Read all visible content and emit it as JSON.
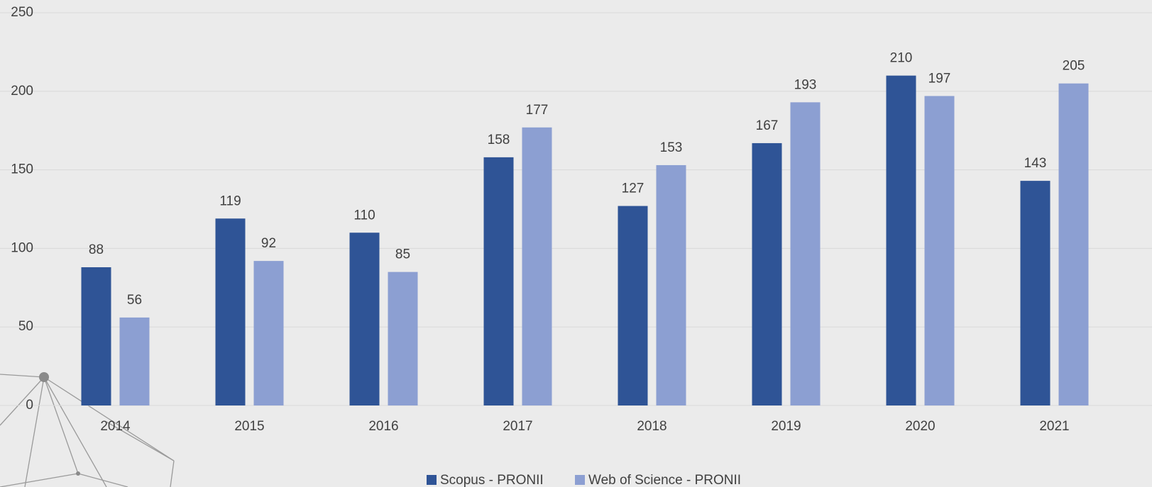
{
  "chart_data": {
    "type": "bar",
    "categories": [
      "2014",
      "2015",
      "2016",
      "2017",
      "2018",
      "2019",
      "2020",
      "2021"
    ],
    "series": [
      {
        "name": "Scopus - PRONII",
        "color": "#2f5496",
        "values": [
          88,
          119,
          110,
          158,
          127,
          167,
          210,
          143
        ]
      },
      {
        "name": "Web of Science - PRONII",
        "color": "#8c9fd2",
        "values": [
          56,
          92,
          85,
          177,
          153,
          193,
          197,
          205
        ]
      }
    ],
    "ylim": [
      0,
      250
    ],
    "yticks": [
      0,
      50,
      100,
      150,
      200,
      250
    ],
    "grid": true,
    "legend": "bottom",
    "data_labels": true
  }
}
